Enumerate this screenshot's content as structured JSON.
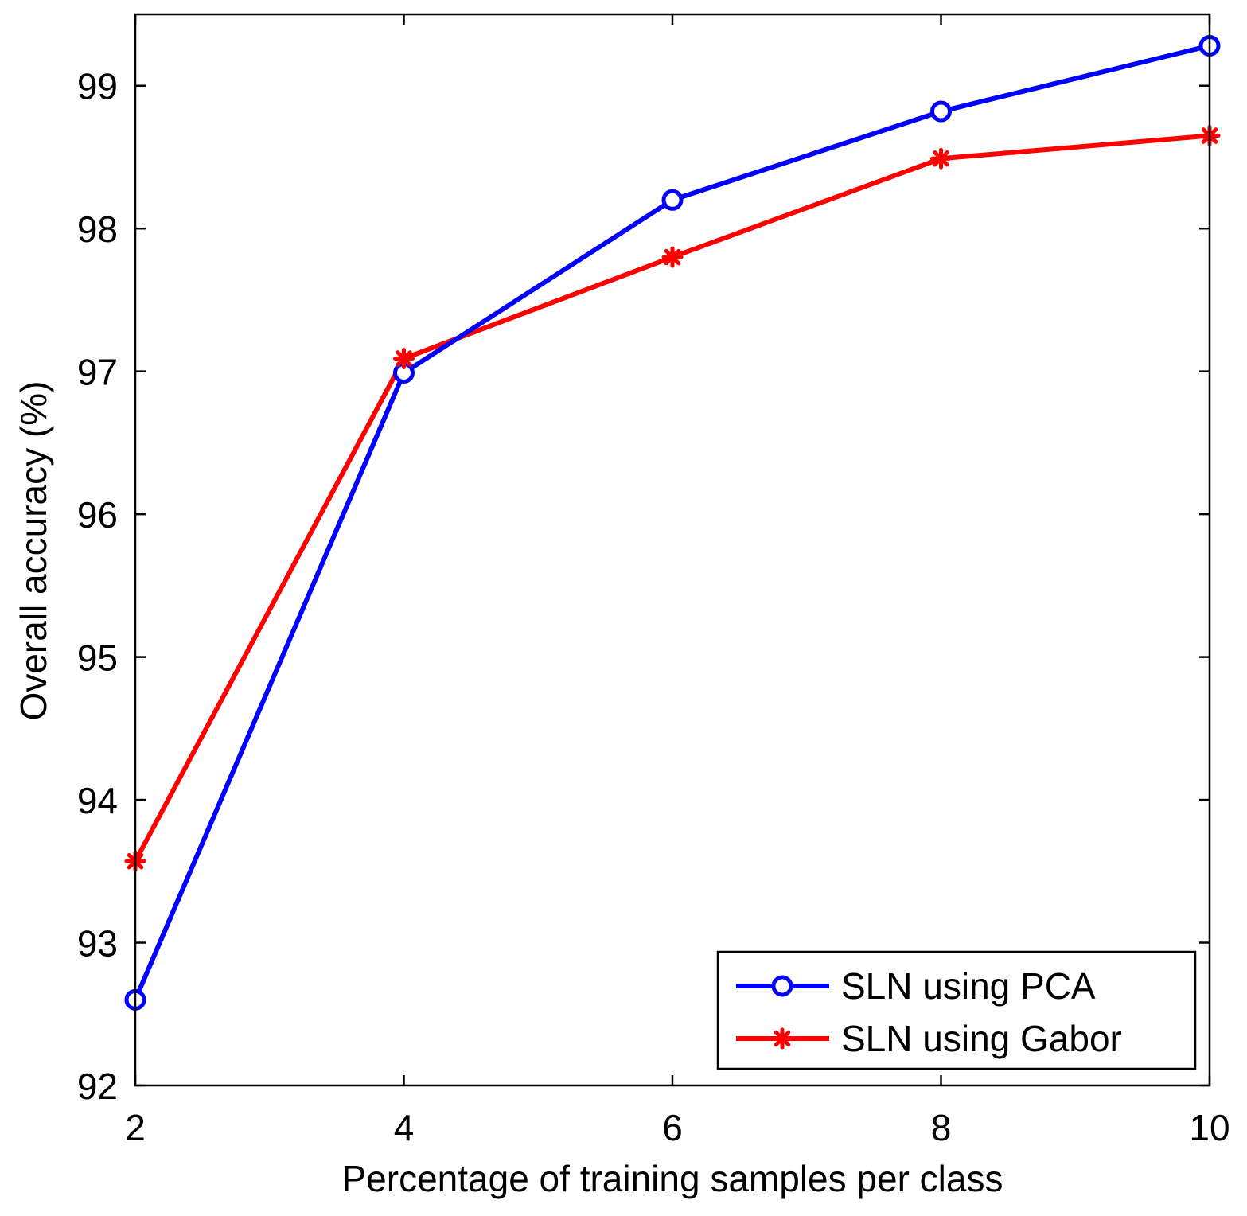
{
  "chart_data": {
    "type": "line",
    "title": "",
    "xlabel": "Percentage of training samples per class",
    "ylabel": "Overall accuracy (%)",
    "xlim": [
      2,
      10
    ],
    "ylim": [
      92,
      99.5
    ],
    "xticks": [
      2,
      4,
      6,
      8,
      10
    ],
    "yticks": [
      92,
      93,
      94,
      95,
      96,
      97,
      98,
      99
    ],
    "x": [
      2,
      4,
      6,
      8,
      10
    ],
    "series": [
      {
        "name": "SLN using PCA",
        "color": "#0000ff",
        "marker": "circle",
        "values": [
          92.6,
          96.99,
          98.2,
          98.82,
          99.28
        ]
      },
      {
        "name": "SLN using Gabor",
        "color": "#ff0000",
        "marker": "star",
        "values": [
          93.57,
          97.09,
          97.8,
          98.49,
          98.65
        ]
      }
    ],
    "legend_position": "bottom-right",
    "grid": false
  }
}
